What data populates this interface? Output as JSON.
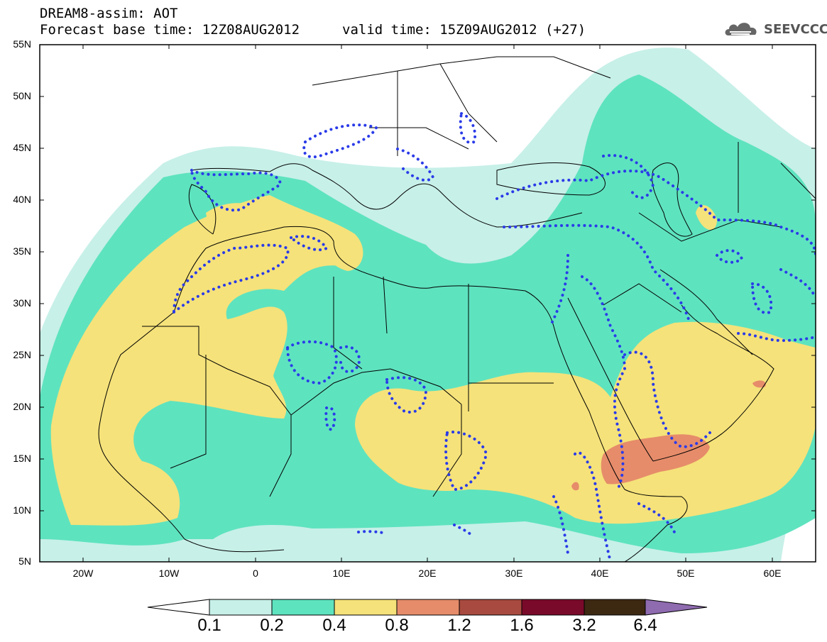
{
  "title": {
    "line1": "DREAM8-assim: AOT",
    "line2": "Forecast base time: 12Z08AUG2012",
    "valid": "valid time: 15Z09AUG2012 (+27)"
  },
  "logo": {
    "text": "SEEVCCC",
    "icon": "cloud-icon"
  },
  "map": {
    "extent": {
      "lon": [
        -25,
        65
      ],
      "lat": [
        5,
        55
      ]
    },
    "lat_labels": [
      "55N",
      "50N",
      "45N",
      "40N",
      "35N",
      "30N",
      "25N",
      "20N",
      "15N",
      "10N",
      "5N"
    ],
    "lon_labels": [
      "20W",
      "10W",
      "0",
      "10E",
      "20E",
      "30E",
      "40E",
      "50E",
      "60E"
    ]
  },
  "colorbar": {
    "labels": [
      "0.1",
      "0.2",
      "0.4",
      "0.8",
      "1.2",
      "1.6",
      "3.2",
      "6.4"
    ],
    "colors": [
      "#ffffff",
      "#c7f0e8",
      "#5ee3bf",
      "#f5e27a",
      "#e68c6a",
      "#a84a3f",
      "#7a0a2a",
      "#3d2812",
      "#8f6bb0"
    ]
  },
  "colors": {
    "c1": "#c7f0e8",
    "c2": "#5ee3bf",
    "c3": "#f5e27a",
    "c4": "#e68c6a",
    "dust_contour": "#2a3be8",
    "borders": "#000000"
  }
}
